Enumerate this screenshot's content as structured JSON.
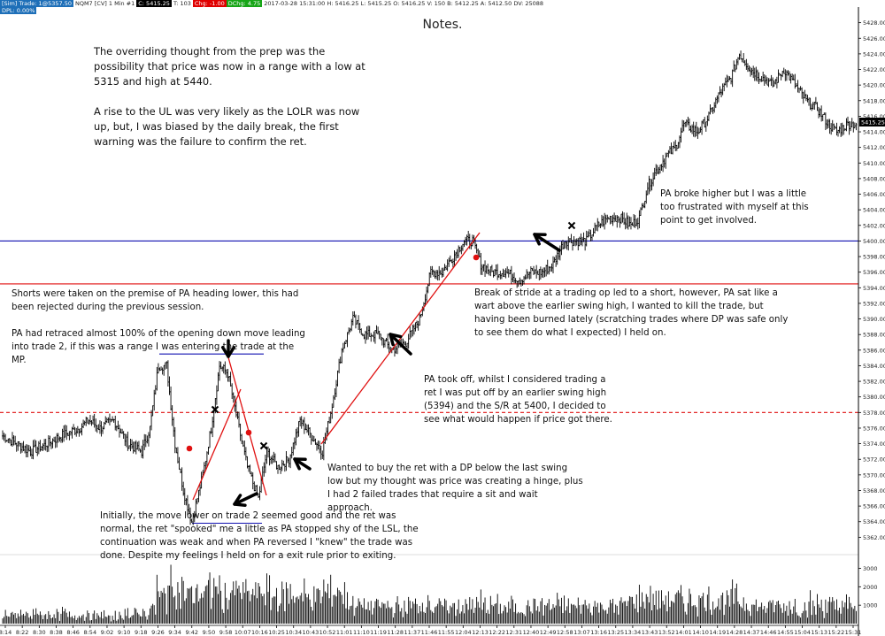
{
  "header": {
    "items": [
      {
        "text": "[Sim]  Trade: 1@5357.50",
        "style": "blue"
      },
      {
        "text": "NQM7 [CV]  1 Min  #1",
        "style": "plain"
      },
      {
        "text": "C: 5415.25",
        "style": "black"
      },
      {
        "text": "T: 103",
        "style": "plain"
      },
      {
        "text": "Chg: -1.00",
        "style": "red"
      },
      {
        "text": "DChg: 4.75",
        "style": "green"
      },
      {
        "text": "2017-03-28 15:31:00  H: 5416.25  L: 5415.25  O: 5416.25  V: 150  B: 5412.25  A: 5412.50  DV: 25088",
        "style": "plain"
      }
    ],
    "dpl": "DPL: 0.00%"
  },
  "title": "Notes.",
  "notes": {
    "prep": "The overriding thought from the prep was the possibility that price was now in a range with a low at 5315 and high at 5440.\n\nA rise to the UL was very likely as the LOLR was now up, but, I was biased by the daily break, the first warning was the failure to confirm the ret.",
    "shorts": "Shorts were taken on the premise of PA heading lower, this had been rejected during the previous session.\n\nPA had retraced almost 100% of the opening down move leading into trade 2, if this was a range I was entering the trade at the MP.",
    "initially": "Initially, the move lower on trade 2 seemed good and the ret was normal, the ret \"spooked\" me a little as PA stopped shy of the LSL, the continuation was weak and when PA reversed I \"knew\" the trade was done.  Despite my feelings I held on for a exit rule prior to exiting.",
    "wanted": "Wanted to buy the ret with a DP below the last swing low but my thought was price was creating a hinge, plus I had 2 failed trades that require a sit and wait approach.",
    "took_off": "PA took off, whilst I considered trading a ret I was put off by an earlier swing high (5394) and the S/R at 5400, I decided to see what would happen if price got there.",
    "break": "Break of stride at a trading op led to a short, however, PA sat like a wart above the earlier swing high, I wanted to kill the trade, but having been burned lately (scratching trades where DP was safe only to see them do what I expected) I held on.",
    "higher": "PA broke higher but I was a little too frustrated with myself at this point to get involved."
  },
  "colors": {
    "candles": "#000000",
    "level_blue": "#1010b0",
    "level_red": "#e01010",
    "trendline": "#e01010",
    "marker_red": "#e01010",
    "last_price_bg": "#000000"
  },
  "chart_data": {
    "type": "bar",
    "instrument": "NQM7",
    "interval": "1 Min",
    "ylim": [
      5360,
      5430
    ],
    "yticks": [
      5362,
      5364,
      5366,
      5368,
      5370,
      5372,
      5374,
      5376,
      5378,
      5380,
      5382,
      5384,
      5386,
      5388,
      5390,
      5392,
      5394,
      5396,
      5398,
      5400,
      5402,
      5404,
      5406,
      5408,
      5410,
      5412,
      5414,
      5416,
      5418,
      5420,
      5422,
      5424,
      5426,
      5428
    ],
    "volume_yticks": [
      1000,
      2000,
      3000
    ],
    "volume_ylim": [
      0,
      3600
    ],
    "last_price": "5415.25",
    "xticks": [
      "8:14",
      "8:22",
      "8:30",
      "8:38",
      "8:46",
      "8:54",
      "9:02",
      "9:10",
      "9:18",
      "9:26",
      "9:34",
      "9:42",
      "9:50",
      "9:58",
      "10:07",
      "10:16",
      "10:25",
      "10:34",
      "10:43",
      "10:52",
      "11:01",
      "11:10",
      "11:19",
      "11:28",
      "11:37",
      "11:46",
      "11:55",
      "12:04",
      "12:13",
      "12:22",
      "12:31",
      "12:40",
      "12:49",
      "12:58",
      "13:07",
      "13:16",
      "13:25",
      "13:34",
      "13:43",
      "13:52",
      "14:01",
      "14:10",
      "14:19",
      "14:28",
      "14:37",
      "14:46",
      "14:55",
      "15:04",
      "15:13",
      "15:22",
      "15:31"
    ],
    "path_keypoints": [
      {
        "i": 0,
        "p": 5375
      },
      {
        "i": 10,
        "p": 5374
      },
      {
        "i": 20,
        "p": 5373
      },
      {
        "i": 32,
        "p": 5374
      },
      {
        "i": 42,
        "p": 5375
      },
      {
        "i": 55,
        "p": 5376
      },
      {
        "i": 62,
        "p": 5377
      },
      {
        "i": 70,
        "p": 5376
      },
      {
        "i": 80,
        "p": 5377
      },
      {
        "i": 90,
        "p": 5374
      },
      {
        "i": 100,
        "p": 5373
      },
      {
        "i": 106,
        "p": 5376
      },
      {
        "i": 112,
        "p": 5384
      },
      {
        "i": 118,
        "p": 5384
      },
      {
        "i": 124,
        "p": 5374
      },
      {
        "i": 130,
        "p": 5368
      },
      {
        "i": 136,
        "p": 5364
      },
      {
        "i": 144,
        "p": 5370
      },
      {
        "i": 150,
        "p": 5376
      },
      {
        "i": 156,
        "p": 5384
      },
      {
        "i": 162,
        "p": 5383
      },
      {
        "i": 170,
        "p": 5376
      },
      {
        "i": 176,
        "p": 5371
      },
      {
        "i": 184,
        "p": 5367
      },
      {
        "i": 190,
        "p": 5373
      },
      {
        "i": 198,
        "p": 5371
      },
      {
        "i": 206,
        "p": 5372
      },
      {
        "i": 214,
        "p": 5377
      },
      {
        "i": 222,
        "p": 5375
      },
      {
        "i": 230,
        "p": 5373
      },
      {
        "i": 236,
        "p": 5378
      },
      {
        "i": 244,
        "p": 5386
      },
      {
        "i": 252,
        "p": 5390
      },
      {
        "i": 260,
        "p": 5388
      },
      {
        "i": 270,
        "p": 5388
      },
      {
        "i": 280,
        "p": 5386
      },
      {
        "i": 290,
        "p": 5387
      },
      {
        "i": 300,
        "p": 5390
      },
      {
        "i": 308,
        "p": 5396
      },
      {
        "i": 316,
        "p": 5396
      },
      {
        "i": 324,
        "p": 5398
      },
      {
        "i": 332,
        "p": 5400
      },
      {
        "i": 338,
        "p": 5400
      },
      {
        "i": 344,
        "p": 5397
      },
      {
        "i": 352,
        "p": 5396
      },
      {
        "i": 362,
        "p": 5396
      },
      {
        "i": 372,
        "p": 5395
      },
      {
        "i": 380,
        "p": 5396
      },
      {
        "i": 388,
        "p": 5396
      },
      {
        "i": 396,
        "p": 5397
      },
      {
        "i": 404,
        "p": 5400
      },
      {
        "i": 412,
        "p": 5400
      },
      {
        "i": 420,
        "p": 5400
      },
      {
        "i": 428,
        "p": 5402
      },
      {
        "i": 436,
        "p": 5403
      },
      {
        "i": 444,
        "p": 5403
      },
      {
        "i": 452,
        "p": 5402
      },
      {
        "i": 458,
        "p": 5403
      },
      {
        "i": 464,
        "p": 5407
      },
      {
        "i": 470,
        "p": 5409
      },
      {
        "i": 478,
        "p": 5411
      },
      {
        "i": 484,
        "p": 5412
      },
      {
        "i": 490,
        "p": 5415
      },
      {
        "i": 500,
        "p": 5414
      },
      {
        "i": 508,
        "p": 5416
      },
      {
        "i": 516,
        "p": 5419
      },
      {
        "i": 524,
        "p": 5421
      },
      {
        "i": 530,
        "p": 5424
      },
      {
        "i": 538,
        "p": 5422
      },
      {
        "i": 546,
        "p": 5421
      },
      {
        "i": 554,
        "p": 5420
      },
      {
        "i": 562,
        "p": 5422
      },
      {
        "i": 570,
        "p": 5420
      },
      {
        "i": 578,
        "p": 5418
      },
      {
        "i": 586,
        "p": 5417
      },
      {
        "i": 594,
        "p": 5415
      },
      {
        "i": 600,
        "p": 5414
      },
      {
        "i": 608,
        "p": 5415
      },
      {
        "i": 614,
        "p": 5415
      }
    ],
    "levels": [
      {
        "price": 5400,
        "color": "blue",
        "style": "solid"
      },
      {
        "price": 5394.5,
        "color": "red",
        "style": "solid"
      },
      {
        "price": 5378,
        "color": "red",
        "style": "dashed"
      }
    ],
    "short_levels": [
      {
        "price": 5385.5,
        "from": "9:42",
        "to": "10:23"
      },
      {
        "price": 5363.8,
        "from": "9:47",
        "to": "10:27"
      }
    ]
  }
}
